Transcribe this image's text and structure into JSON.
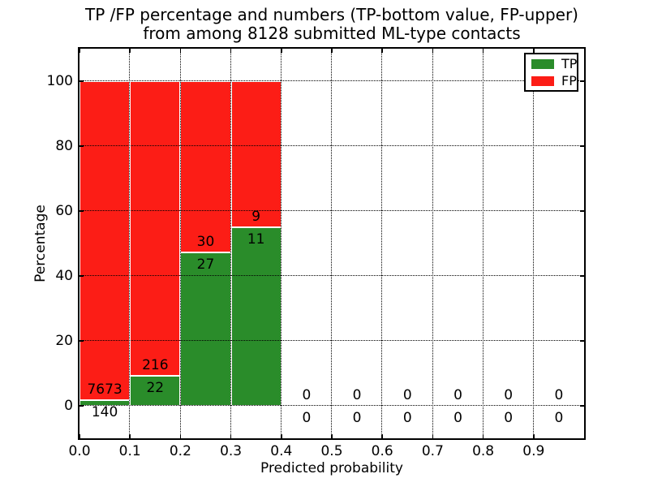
{
  "figure": {
    "title_line1": "TP /FP percentage and numbers (TP-bottom value, FP-upper)",
    "title_line2": "from among 8128 submitted ML-type contacts"
  },
  "chart_data": {
    "type": "bar",
    "subtype": "stacked_percentage_histogram",
    "title": "TP /FP percentage and numbers (TP-bottom value, FP-upper) from among 8128 submitted ML-type contacts",
    "xlabel": "Predicted probability",
    "ylabel": "Percentage",
    "xlim": [
      0.0,
      1.0
    ],
    "ylim": [
      -10,
      110
    ],
    "x_tick_labels": [
      "0.0",
      "0.1",
      "0.2",
      "0.3",
      "0.4",
      "0.5",
      "0.6",
      "0.7",
      "0.8",
      "0.9"
    ],
    "x_tick_values": [
      0.0,
      0.1,
      0.2,
      0.3,
      0.4,
      0.5,
      0.6,
      0.7,
      0.8,
      0.9
    ],
    "y_tick_labels": [
      "0",
      "20",
      "40",
      "60",
      "80",
      "100"
    ],
    "y_tick_values": [
      0,
      20,
      40,
      60,
      80,
      100
    ],
    "grid": "dotted",
    "total_contacts": 8128,
    "colors": {
      "tp": "#2a8c2a",
      "fp": "#fc1d16",
      "bar_edge": "#ffffff"
    },
    "legend": {
      "position": "upper right",
      "entries": [
        {
          "label": "TP",
          "color": "#2a8c2a"
        },
        {
          "label": "FP",
          "color": "#fc1d16"
        }
      ]
    },
    "bins": [
      {
        "range": [
          0.0,
          0.1
        ],
        "tp": 140,
        "fp": 7673,
        "tp_pct": 1.792,
        "fp_pct": 98.208
      },
      {
        "range": [
          0.1,
          0.2
        ],
        "tp": 22,
        "fp": 216,
        "tp_pct": 9.244,
        "fp_pct": 90.756
      },
      {
        "range": [
          0.2,
          0.3
        ],
        "tp": 27,
        "fp": 30,
        "tp_pct": 47.368,
        "fp_pct": 52.632
      },
      {
        "range": [
          0.3,
          0.4
        ],
        "tp": 11,
        "fp": 9,
        "tp_pct": 55.0,
        "fp_pct": 45.0
      },
      {
        "range": [
          0.4,
          0.5
        ],
        "tp": 0,
        "fp": 0,
        "tp_pct": null,
        "fp_pct": null
      },
      {
        "range": [
          0.5,
          0.6
        ],
        "tp": 0,
        "fp": 0,
        "tp_pct": null,
        "fp_pct": null
      },
      {
        "range": [
          0.6,
          0.7
        ],
        "tp": 0,
        "fp": 0,
        "tp_pct": null,
        "fp_pct": null
      },
      {
        "range": [
          0.7,
          0.8
        ],
        "tp": 0,
        "fp": 0,
        "tp_pct": null,
        "fp_pct": null
      },
      {
        "range": [
          0.8,
          0.9
        ],
        "tp": 0,
        "fp": 0,
        "tp_pct": null,
        "fp_pct": null
      },
      {
        "range": [
          0.9,
          1.0
        ],
        "tp": 0,
        "fp": 0,
        "tp_pct": null,
        "fp_pct": null
      }
    ]
  }
}
